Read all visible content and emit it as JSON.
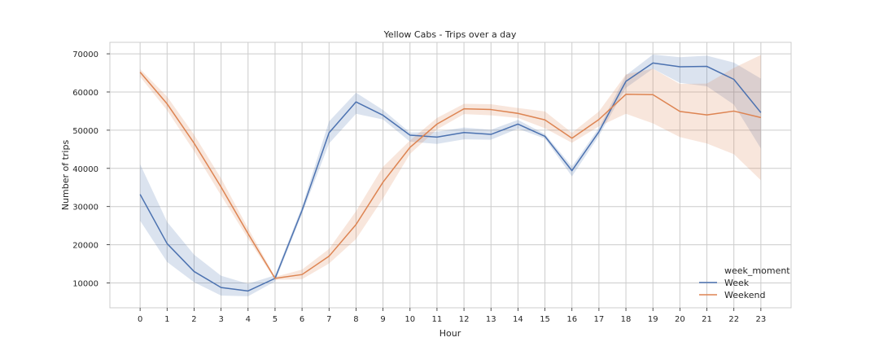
{
  "chart_data": {
    "type": "line",
    "title": "Yellow Cabs - Trips over a day",
    "xlabel": "Hour",
    "ylabel": "Number of trips",
    "x": [
      0,
      1,
      2,
      3,
      4,
      5,
      6,
      7,
      8,
      9,
      10,
      11,
      12,
      13,
      14,
      15,
      16,
      17,
      18,
      19,
      20,
      21,
      22,
      23
    ],
    "xlim": [
      -1.12,
      24.12
    ],
    "ylim": [
      3500,
      73000
    ],
    "yticks": [
      10000,
      20000,
      30000,
      40000,
      50000,
      60000,
      70000
    ],
    "ytick_labels": [
      "10000",
      "20000",
      "30000",
      "40000",
      "50000",
      "60000",
      "70000"
    ],
    "grid": true,
    "legend_title": "week_moment",
    "legend_position": "lower-right",
    "series": [
      {
        "name": "Week",
        "color": "#4c72b0",
        "values": [
          33200,
          20300,
          13000,
          8800,
          7900,
          11200,
          29000,
          49300,
          57400,
          53900,
          48700,
          48200,
          49400,
          48900,
          51600,
          48400,
          39400,
          49600,
          62800,
          67600,
          66600,
          66700,
          63300,
          54600
        ],
        "ci_low": [
          26300,
          15500,
          10200,
          6700,
          6500,
          10400,
          28100,
          46500,
          54300,
          52800,
          47000,
          46400,
          47600,
          47500,
          50400,
          47800,
          37900,
          48500,
          61100,
          66100,
          62400,
          61500,
          56700,
          45200
        ],
        "ci_high": [
          41100,
          26000,
          17400,
          11900,
          9800,
          12000,
          30000,
          52300,
          59800,
          55300,
          49400,
          49600,
          50700,
          50100,
          52700,
          49000,
          40500,
          50600,
          64400,
          69800,
          69100,
          69500,
          67700,
          63500
        ]
      },
      {
        "name": "Weekend",
        "color": "#dd8452",
        "values": [
          65200,
          56900,
          46600,
          35100,
          22900,
          11200,
          12200,
          17000,
          25300,
          36400,
          45500,
          51600,
          55600,
          55400,
          54400,
          52700,
          47900,
          52800,
          59400,
          59300,
          54900,
          54000,
          55000,
          53300
        ],
        "ci_low": [
          64000,
          55200,
          44500,
          32900,
          21600,
          10800,
          11000,
          15100,
          21500,
          32100,
          43800,
          50200,
          54200,
          53900,
          53200,
          50500,
          46700,
          51000,
          54300,
          51800,
          48200,
          46500,
          43700,
          36900
        ],
        "ci_high": [
          66000,
          58800,
          48800,
          37400,
          24300,
          11600,
          13500,
          18900,
          28800,
          40400,
          47300,
          53200,
          56900,
          56800,
          55800,
          54900,
          49300,
          54900,
          64600,
          66100,
          62100,
          62200,
          66300,
          69700
        ]
      }
    ]
  }
}
